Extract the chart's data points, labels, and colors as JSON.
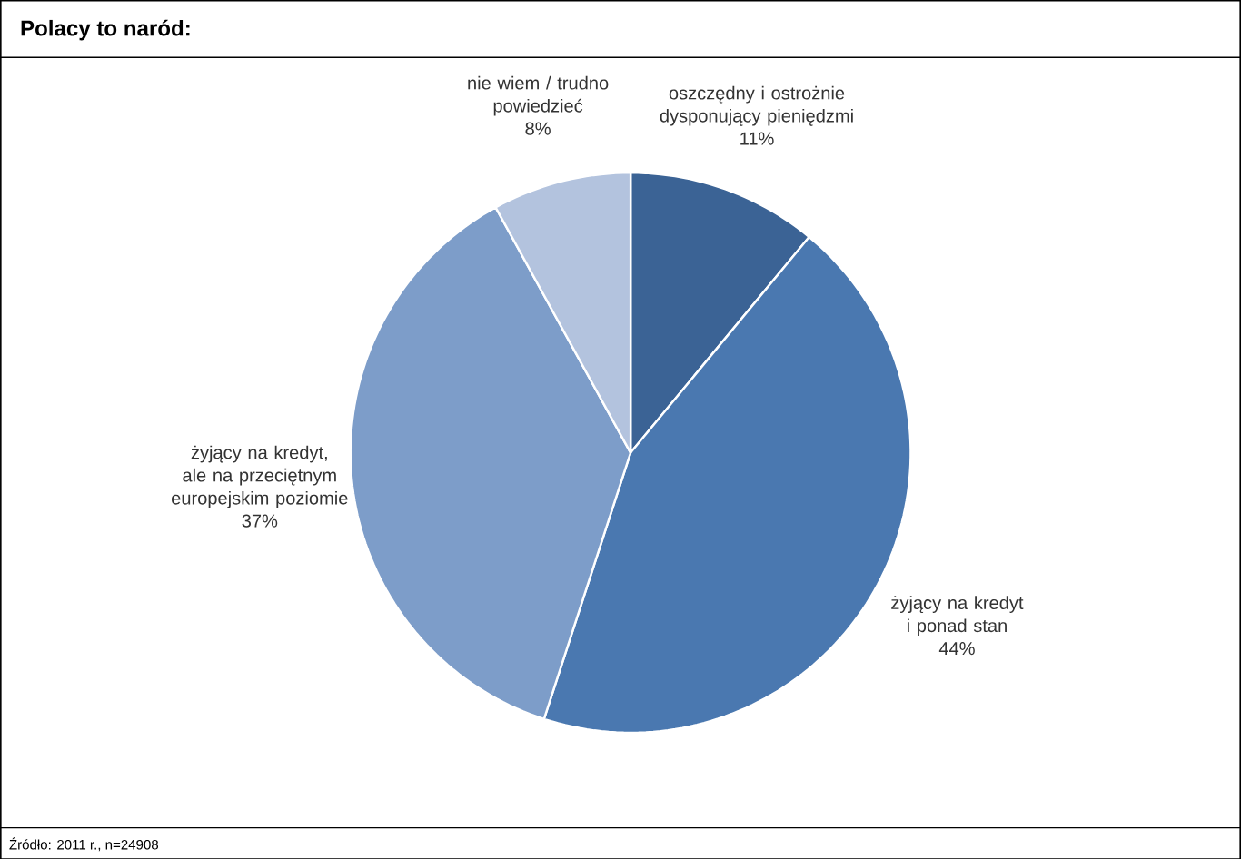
{
  "chart_data": {
    "type": "pie",
    "title": "Polacy to naród:",
    "categories": [
      "oszczędny i ostrożnie dysponujący pieniędzmi",
      "żyjący na kredyt i ponad stan",
      "żyjący na kredyt, ale na przeciętnym europejskim poziomie",
      "nie wiem / trudno powiedzieć"
    ],
    "values": [
      11,
      44,
      37,
      8
    ],
    "value_labels": [
      "11%",
      "44%",
      "37%",
      "8%"
    ],
    "colors": [
      "#3b6395",
      "#4a78b0",
      "#7d9dc9",
      "#b3c3de"
    ],
    "annotations": [
      "Źródło: 2011 r., n=24908"
    ]
  }
}
